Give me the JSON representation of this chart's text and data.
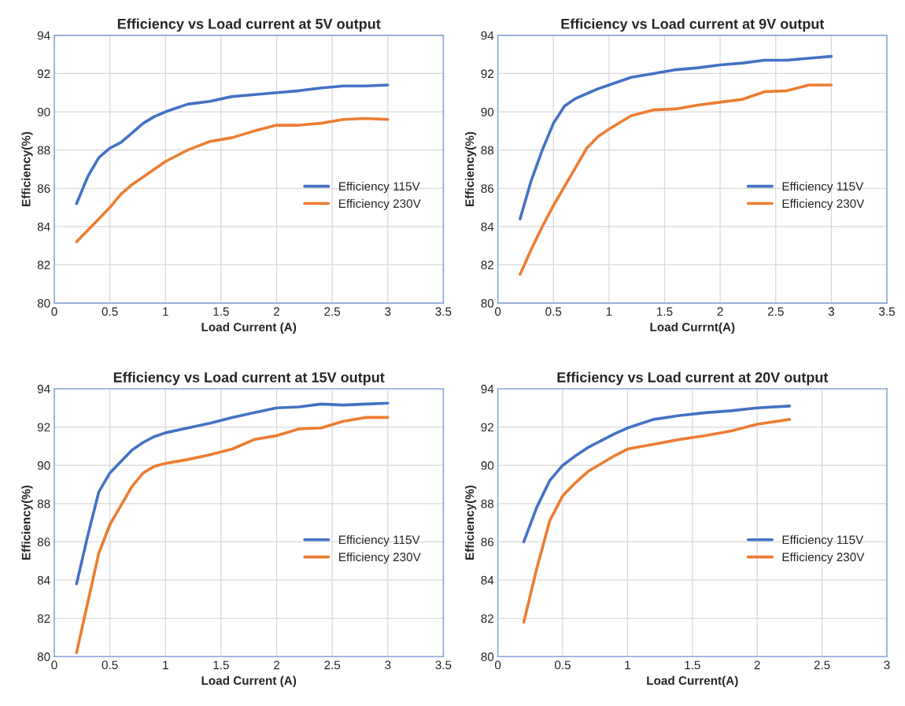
{
  "chart_data": [
    {
      "type": "line",
      "title": "Efficiency vs Load current at 5V output",
      "xlabel": "Load Current (A)",
      "ylabel": "Efficiency(%)",
      "xlim": [
        0,
        3.5
      ],
      "xticks": [
        0,
        0.5,
        1,
        1.5,
        2,
        2.5,
        3,
        3.5
      ],
      "ylim": [
        80,
        94
      ],
      "yticks": [
        80,
        82,
        84,
        86,
        88,
        90,
        92,
        94
      ],
      "grid": true,
      "legend": "right",
      "x": [
        0.2,
        0.3,
        0.4,
        0.5,
        0.6,
        0.7,
        0.8,
        0.9,
        1,
        1.2,
        1.4,
        1.6,
        1.8,
        2,
        2.2,
        2.4,
        2.6,
        2.8,
        3
      ],
      "series": [
        {
          "name": "Efficiency 115V",
          "color": "#4472c4",
          "values": [
            85.2,
            86.6,
            87.6,
            88.1,
            88.4,
            88.9,
            89.4,
            89.75,
            90.0,
            90.4,
            90.55,
            90.8,
            90.9,
            91.0,
            91.1,
            91.25,
            91.35,
            91.35,
            91.4
          ]
        },
        {
          "name": "Efficiency 230V",
          "color": "#ed7d31",
          "values": [
            83.2,
            83.8,
            84.4,
            85.0,
            85.7,
            86.2,
            86.6,
            87.0,
            87.4,
            88.0,
            88.45,
            88.65,
            89.0,
            89.3,
            89.3,
            89.4,
            89.6,
            89.65,
            89.6
          ]
        }
      ]
    },
    {
      "type": "line",
      "title": "Efficiency vs Load current at 9V output",
      "xlabel": "Load Currnt(A)",
      "ylabel": "Efficiency(%)",
      "xlim": [
        0,
        3.5
      ],
      "xticks": [
        0,
        0.5,
        1,
        1.5,
        2,
        2.5,
        3,
        3.5
      ],
      "ylim": [
        80,
        94
      ],
      "yticks": [
        80,
        82,
        84,
        86,
        88,
        90,
        92,
        94
      ],
      "grid": true,
      "legend": "right",
      "x": [
        0.2,
        0.3,
        0.4,
        0.5,
        0.6,
        0.7,
        0.8,
        0.9,
        1,
        1.2,
        1.4,
        1.6,
        1.8,
        2,
        2.2,
        2.4,
        2.6,
        2.8,
        3
      ],
      "series": [
        {
          "name": "Efficiency 115V",
          "color": "#4472c4",
          "values": [
            84.4,
            86.4,
            88.0,
            89.4,
            90.3,
            90.7,
            90.95,
            91.2,
            91.4,
            91.8,
            92.0,
            92.2,
            92.3,
            92.45,
            92.55,
            92.7,
            92.7,
            92.8,
            92.9
          ]
        },
        {
          "name": "Efficiency 230V",
          "color": "#ed7d31",
          "values": [
            81.5,
            82.8,
            84.0,
            85.1,
            86.1,
            87.1,
            88.1,
            88.7,
            89.1,
            89.8,
            90.1,
            90.15,
            90.35,
            90.5,
            90.65,
            91.05,
            91.1,
            91.4,
            91.4
          ]
        }
      ]
    },
    {
      "type": "line",
      "title": "Efficiency vs Load current at 15V output",
      "xlabel": "Load Current (A)",
      "ylabel": "Efficiency(%)",
      "xlim": [
        0,
        3.5
      ],
      "xticks": [
        0,
        0.5,
        1,
        1.5,
        2,
        2.5,
        3,
        3.5
      ],
      "ylim": [
        80,
        94
      ],
      "yticks": [
        80,
        82,
        84,
        86,
        88,
        90,
        92,
        94
      ],
      "grid": true,
      "legend": "right",
      "x": [
        0.2,
        0.3,
        0.4,
        0.5,
        0.6,
        0.7,
        0.8,
        0.9,
        1,
        1.2,
        1.4,
        1.6,
        1.8,
        2,
        2.2,
        2.4,
        2.6,
        2.8,
        3
      ],
      "series": [
        {
          "name": "Efficiency 115V",
          "color": "#4472c4",
          "values": [
            83.8,
            86.3,
            88.6,
            89.6,
            90.2,
            90.8,
            91.2,
            91.5,
            91.7,
            91.95,
            92.2,
            92.5,
            92.75,
            93.0,
            93.05,
            93.2,
            93.15,
            93.2,
            93.25
          ]
        },
        {
          "name": "Efficiency 230V",
          "color": "#ed7d31",
          "values": [
            80.2,
            82.8,
            85.4,
            86.9,
            87.9,
            88.9,
            89.6,
            89.95,
            90.1,
            90.3,
            90.55,
            90.85,
            91.35,
            91.55,
            91.9,
            91.95,
            92.3,
            92.5,
            92.5
          ]
        }
      ]
    },
    {
      "type": "line",
      "title": "Efficiency vs Load current at 20V output",
      "xlabel": "Load Current(A)",
      "ylabel": "Efficiency(%)",
      "xlim": [
        0,
        3
      ],
      "xticks": [
        0,
        0.5,
        1,
        1.5,
        2,
        2.5,
        3
      ],
      "ylim": [
        80,
        94
      ],
      "yticks": [
        80,
        82,
        84,
        86,
        88,
        90,
        92,
        94
      ],
      "grid": true,
      "legend": "right",
      "x": [
        0.2,
        0.3,
        0.4,
        0.5,
        0.6,
        0.7,
        0.8,
        0.9,
        1,
        1.2,
        1.4,
        1.6,
        1.8,
        2,
        2.25
      ],
      "series": [
        {
          "name": "Efficiency 115V",
          "color": "#4472c4",
          "values": [
            86.0,
            87.8,
            89.2,
            90.0,
            90.5,
            90.95,
            91.3,
            91.65,
            91.95,
            92.4,
            92.6,
            92.75,
            92.85,
            93.0,
            93.1
          ]
        },
        {
          "name": "Efficiency 230V",
          "color": "#ed7d31",
          "values": [
            81.8,
            84.6,
            87.1,
            88.4,
            89.1,
            89.7,
            90.1,
            90.5,
            90.85,
            91.1,
            91.35,
            91.55,
            91.8,
            92.15,
            92.4
          ]
        }
      ]
    }
  ]
}
